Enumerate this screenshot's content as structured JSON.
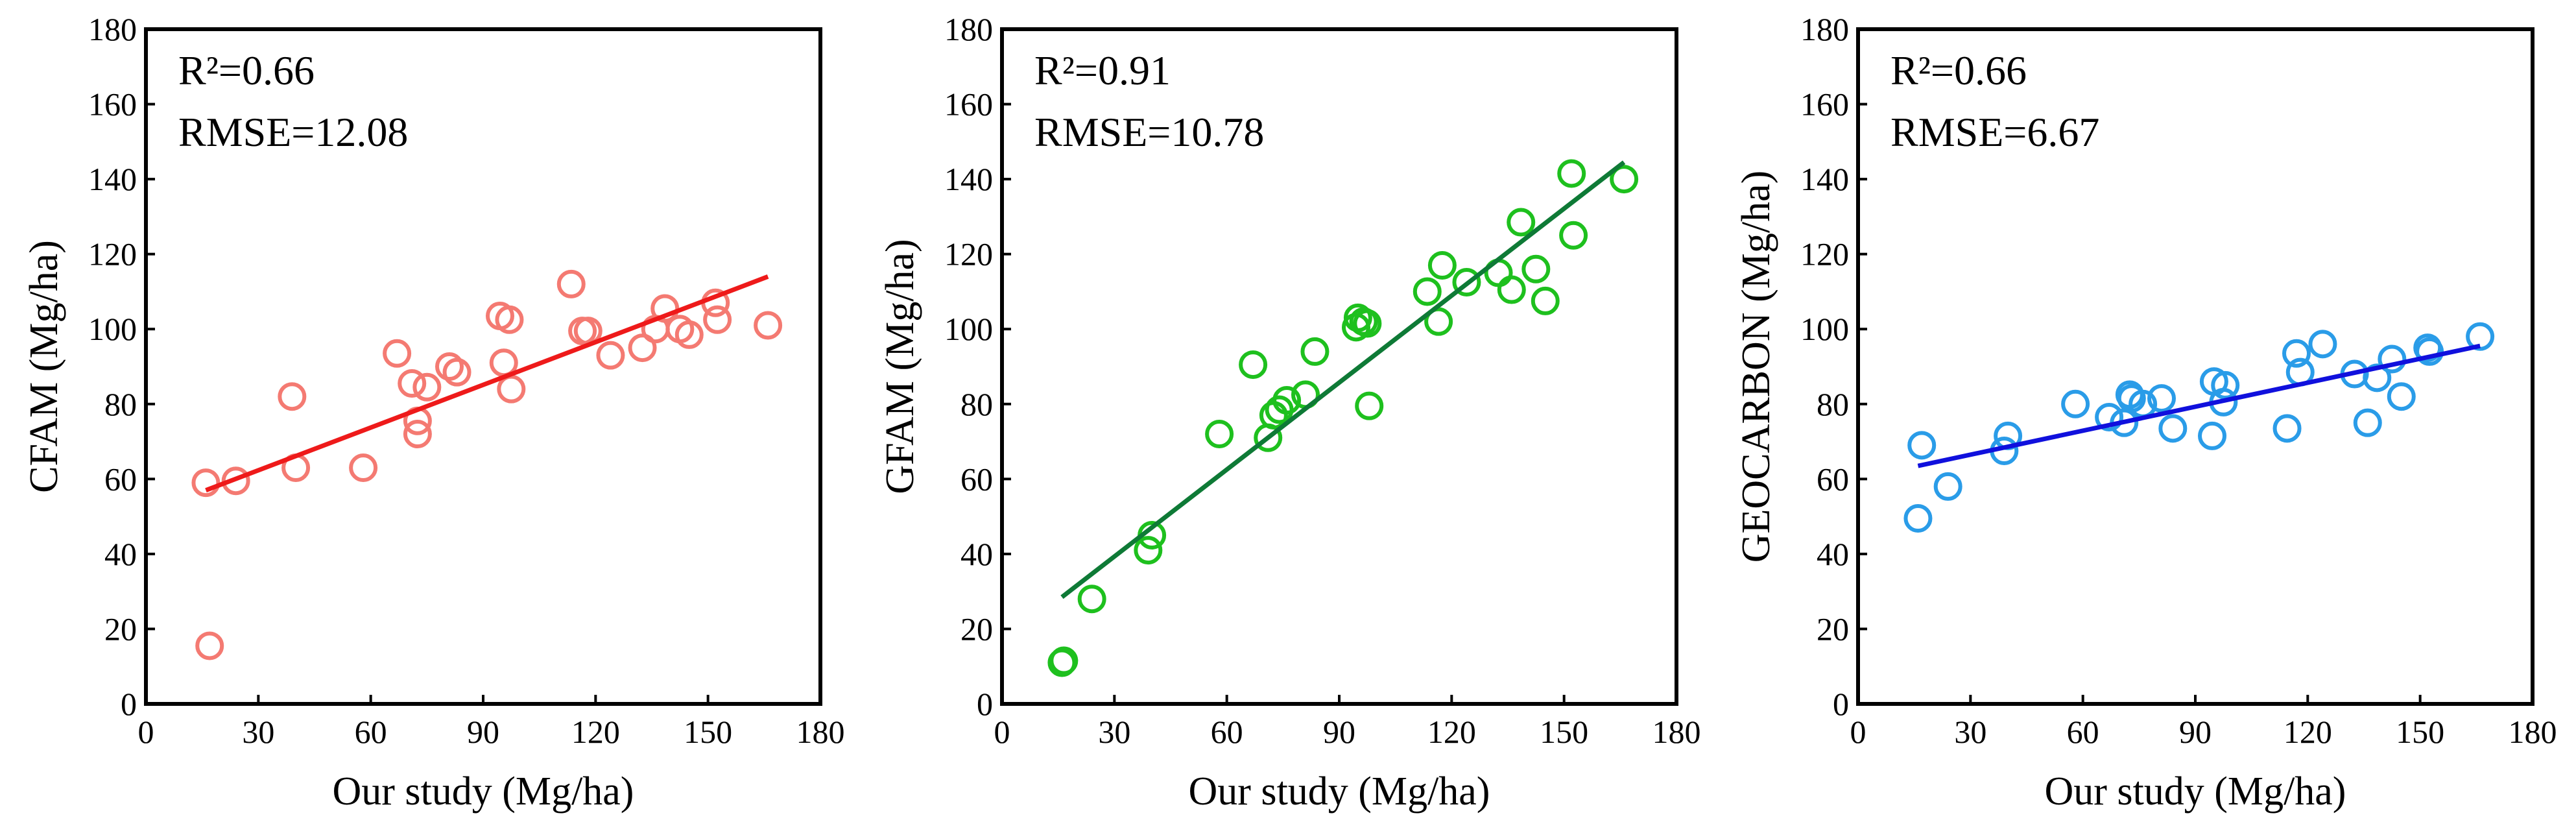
{
  "chart_data": [
    {
      "type": "scatter",
      "marker_color": "#f47a72",
      "fit_color": "#ee1a1a",
      "xlabel": "Our study (Mg/ha)",
      "ylabel": "CFAM (Mg/ha)",
      "xlim": [
        0,
        180
      ],
      "ylim": [
        0,
        180
      ],
      "xticks": [
        "0",
        "30",
        "60",
        "90",
        "120",
        "150",
        "180"
      ],
      "yticks": [
        "0",
        "20",
        "40",
        "60",
        "80",
        "100",
        "120",
        "140",
        "160",
        "180"
      ],
      "annotations": [
        "R²=0.66",
        "RMSE=12.08"
      ],
      "fit": {
        "x": [
          16,
          166
        ],
        "y": [
          57,
          114
        ]
      },
      "points": [
        [
          16,
          59
        ],
        [
          17,
          15.5
        ],
        [
          24,
          59.5
        ],
        [
          39,
          82
        ],
        [
          40,
          63
        ],
        [
          58,
          63
        ],
        [
          67,
          93.5
        ],
        [
          71,
          85.5
        ],
        [
          72.5,
          72
        ],
        [
          72.5,
          75.5
        ],
        [
          75,
          84.5
        ],
        [
          81,
          90
        ],
        [
          83,
          88.5
        ],
        [
          94.5,
          103.5
        ],
        [
          95.5,
          91
        ],
        [
          97,
          102.5
        ],
        [
          97.5,
          84
        ],
        [
          113.5,
          112
        ],
        [
          116.5,
          99.5
        ],
        [
          118,
          99.5
        ],
        [
          124,
          93
        ],
        [
          132.5,
          95
        ],
        [
          136,
          100
        ],
        [
          138.5,
          105.5
        ],
        [
          142.5,
          100
        ],
        [
          145,
          98.5
        ],
        [
          152,
          107
        ],
        [
          152.5,
          102.5
        ],
        [
          166,
          101
        ]
      ]
    },
    {
      "type": "scatter",
      "marker_color": "#1ec01e",
      "fit_color": "#0e7a36",
      "xlabel": "Our study (Mg/ha)",
      "ylabel": "GFAM (Mg/ha)",
      "xlim": [
        0,
        180
      ],
      "ylim": [
        0,
        180
      ],
      "xticks": [
        "0",
        "30",
        "60",
        "90",
        "120",
        "150",
        "180"
      ],
      "yticks": [
        "0",
        "20",
        "40",
        "60",
        "80",
        "100",
        "120",
        "140",
        "160",
        "180"
      ],
      "annotations": [
        "R²=0.91",
        "RMSE=10.78"
      ],
      "fit": {
        "x": [
          16,
          166
        ],
        "y": [
          28.5,
          144.5
        ]
      },
      "points": [
        [
          16,
          11
        ],
        [
          16.5,
          11.5
        ],
        [
          24,
          28
        ],
        [
          39,
          41
        ],
        [
          40,
          45
        ],
        [
          58,
          72
        ],
        [
          67,
          90.5
        ],
        [
          71,
          71
        ],
        [
          72.5,
          77
        ],
        [
          74,
          78.5
        ],
        [
          76,
          81
        ],
        [
          81,
          82.5
        ],
        [
          83.5,
          94
        ],
        [
          94.5,
          100.5
        ],
        [
          95,
          103
        ],
        [
          96.5,
          102
        ],
        [
          97.5,
          101.5
        ],
        [
          98,
          79.5
        ],
        [
          113.5,
          110
        ],
        [
          116.5,
          102
        ],
        [
          117.5,
          117
        ],
        [
          124,
          112.5
        ],
        [
          132.5,
          115
        ],
        [
          136,
          110.5
        ],
        [
          138.5,
          128.5
        ],
        [
          142.5,
          116
        ],
        [
          145,
          107.5
        ],
        [
          152,
          141.5
        ],
        [
          152.5,
          125
        ],
        [
          166,
          140
        ]
      ]
    },
    {
      "type": "scatter",
      "marker_color": "#2a9ce8",
      "fit_color": "#1010dd",
      "xlabel": "Our study (Mg/ha)",
      "ylabel": "GEOCARBON (Mg/ha)",
      "xlim": [
        0,
        180
      ],
      "ylim": [
        0,
        180
      ],
      "xticks": [
        "0",
        "30",
        "60",
        "90",
        "120",
        "150",
        "180"
      ],
      "yticks": [
        "0",
        "20",
        "40",
        "60",
        "80",
        "100",
        "120",
        "140",
        "160",
        "180"
      ],
      "annotations": [
        "R²=0.66",
        "RMSE=6.67"
      ],
      "fit": {
        "x": [
          16,
          166
        ],
        "y": [
          63.5,
          95.5
        ]
      },
      "points": [
        [
          16,
          49.5
        ],
        [
          17,
          69
        ],
        [
          24,
          58
        ],
        [
          39,
          67.5
        ],
        [
          40,
          71.5
        ],
        [
          58,
          80
        ],
        [
          67,
          76.5
        ],
        [
          71,
          75
        ],
        [
          72.5,
          82.5
        ],
        [
          73,
          81.5
        ],
        [
          76,
          80
        ],
        [
          81,
          81.5
        ],
        [
          84,
          73.5
        ],
        [
          94.5,
          71.5
        ],
        [
          95,
          86
        ],
        [
          97.5,
          80.5
        ],
        [
          98,
          85
        ],
        [
          114.5,
          73.5
        ],
        [
          117,
          93.5
        ],
        [
          118,
          88.5
        ],
        [
          124,
          96
        ],
        [
          132.5,
          88
        ],
        [
          136,
          75
        ],
        [
          138.5,
          87
        ],
        [
          142.5,
          92
        ],
        [
          145,
          82
        ],
        [
          152,
          95
        ],
        [
          152.5,
          94
        ],
        [
          166,
          98
        ]
      ]
    }
  ]
}
